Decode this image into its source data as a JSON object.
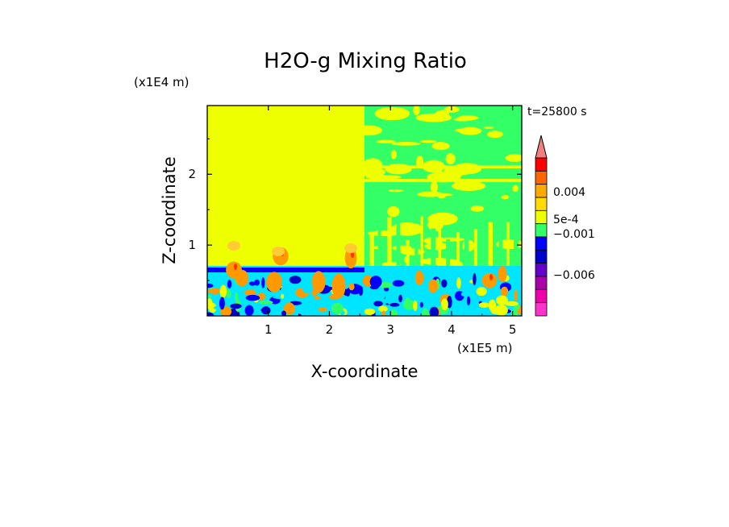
{
  "chart_data": {
    "type": "heatmap",
    "title": "H2O-g Mixing Ratio",
    "xlabel": "X-coordinate",
    "ylabel": "Z-coordinate",
    "x_unit": "(x1E5 m)",
    "y_unit": "(x1E4 m)",
    "time_label": "t=25800 s",
    "xlim": [
      0,
      5.15
    ],
    "ylim": [
      0,
      2.97
    ],
    "x_ticks": [
      "1",
      "2",
      "3",
      "4",
      "5"
    ],
    "x_tick_values": [
      1,
      2,
      3,
      4,
      5
    ],
    "y_ticks": [
      "1",
      "2"
    ],
    "y_tick_values": [
      1,
      2
    ],
    "colorbar": {
      "orientation": "vertical",
      "extend": "max",
      "labels": [
        "0.004",
        "5e-4",
        "−0.001",
        "−0.006"
      ],
      "colors_top_to_bottom": [
        "#f08080",
        "#ff0000",
        "#ff6600",
        "#ffaa00",
        "#ffdd00",
        "#eeff00",
        "#33ff66",
        "#0000ff",
        "#0000cc",
        "#6600cc",
        "#aa00aa",
        "#ee00aa",
        "#ff33cc"
      ]
    },
    "field_regions": [
      {
        "description": "left upper area",
        "color": "#eeff00"
      },
      {
        "description": "right upper area",
        "color": "#33ff66"
      },
      {
        "description": "boundary layer",
        "color": "#00e5ff"
      },
      {
        "description": "surface layer",
        "color": "#0000ff"
      }
    ]
  }
}
